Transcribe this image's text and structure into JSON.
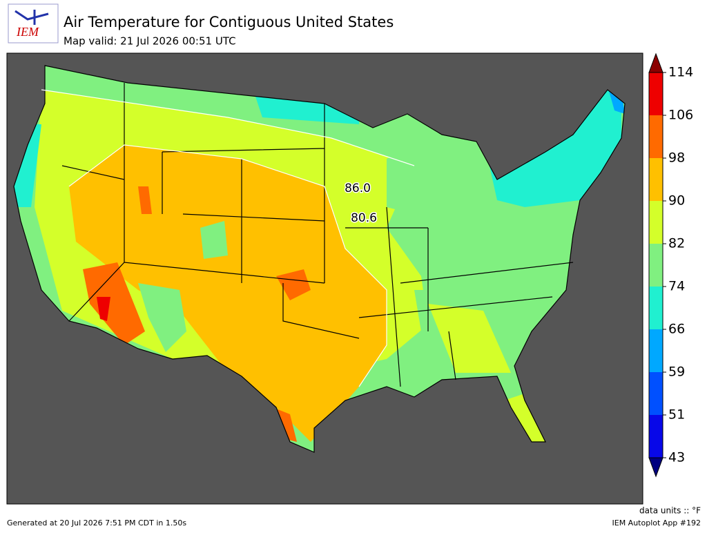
{
  "header": {
    "logo": "IEM",
    "title": "Air Temperature for Contiguous United States",
    "subtitle": "Map valid: 21 Jul 2026 00:51 UTC"
  },
  "map": {
    "station_labels": [
      {
        "value": 86,
        "label": "86.0"
      },
      {
        "value": 80.6,
        "label": "80.6"
      }
    ]
  },
  "colorbar": {
    "ticks": [
      43,
      51,
      59,
      66,
      74,
      82,
      90,
      98,
      106,
      114
    ],
    "colors": [
      "#0808e8",
      "#0050ff",
      "#00a8ff",
      "#20f0d0",
      "#80f080",
      "#d4ff2a",
      "#ffc000",
      "#ff6a00",
      "#ee0000"
    ],
    "under_color": "#000080",
    "over_color": "#8b0000",
    "units": "data units :: °F"
  },
  "footer": {
    "generated": "Generated at 20 Jul 2026 7:51 PM CDT in 1.50s",
    "app": "IEM Autoplot App #192"
  }
}
